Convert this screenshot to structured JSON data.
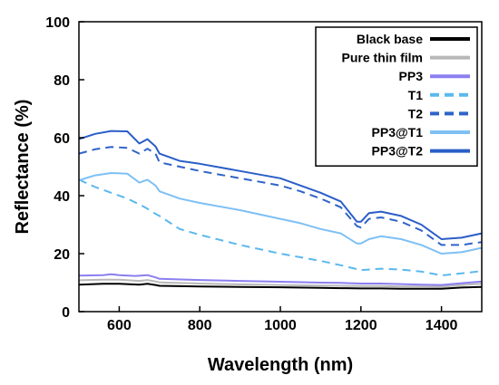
{
  "chart_data": {
    "type": "line",
    "title": "",
    "xlabel": "Wavelength (nm)",
    "ylabel": "Reflectance (%)",
    "xlim": [
      500,
      1500
    ],
    "ylim": [
      0,
      100
    ],
    "xticks": [
      600,
      800,
      1000,
      1200,
      1400
    ],
    "yticks": [
      0,
      20,
      40,
      60,
      80,
      100
    ],
    "grid": false,
    "legend_position": "top-right",
    "series": [
      {
        "name": "Black base",
        "color": "#000000",
        "dash": false,
        "points": [
          [
            500,
            9.3
          ],
          [
            560,
            9.6
          ],
          [
            600,
            9.6
          ],
          [
            650,
            9.3
          ],
          [
            670,
            9.6
          ],
          [
            690,
            9.2
          ],
          [
            700,
            8.9
          ],
          [
            800,
            8.7
          ],
          [
            900,
            8.5
          ],
          [
            1000,
            8.4
          ],
          [
            1100,
            8.2
          ],
          [
            1150,
            8.1
          ],
          [
            1200,
            8.0
          ],
          [
            1250,
            8.0
          ],
          [
            1300,
            7.9
          ],
          [
            1350,
            7.9
          ],
          [
            1400,
            7.9
          ],
          [
            1450,
            8.3
          ],
          [
            1500,
            8.5
          ]
        ]
      },
      {
        "name": "Pure thin film",
        "color": "#b8b8b8",
        "dash": false,
        "points": [
          [
            500,
            10.8
          ],
          [
            560,
            11.0
          ],
          [
            600,
            11.0
          ],
          [
            650,
            10.6
          ],
          [
            670,
            10.9
          ],
          [
            690,
            10.4
          ],
          [
            700,
            10.1
          ],
          [
            800,
            9.7
          ],
          [
            900,
            9.4
          ],
          [
            1000,
            9.2
          ],
          [
            1100,
            9.0
          ],
          [
            1150,
            8.9
          ],
          [
            1200,
            8.8
          ],
          [
            1250,
            8.8
          ],
          [
            1300,
            8.7
          ],
          [
            1350,
            8.7
          ],
          [
            1400,
            8.6
          ],
          [
            1450,
            9.2
          ],
          [
            1500,
            9.6
          ]
        ]
      },
      {
        "name": "PP3",
        "color": "#8b7ff0",
        "dash": false,
        "points": [
          [
            500,
            12.4
          ],
          [
            560,
            12.6
          ],
          [
            580,
            12.9
          ],
          [
            600,
            12.6
          ],
          [
            640,
            12.3
          ],
          [
            670,
            12.6
          ],
          [
            690,
            11.8
          ],
          [
            700,
            11.3
          ],
          [
            800,
            10.9
          ],
          [
            900,
            10.6
          ],
          [
            1000,
            10.3
          ],
          [
            1100,
            10.0
          ],
          [
            1150,
            9.9
          ],
          [
            1200,
            9.7
          ],
          [
            1250,
            9.7
          ],
          [
            1300,
            9.5
          ],
          [
            1350,
            9.3
          ],
          [
            1400,
            9.2
          ],
          [
            1450,
            9.8
          ],
          [
            1500,
            10.4
          ]
        ]
      },
      {
        "name": "T1",
        "color": "#5bb8ee",
        "dash": true,
        "points": [
          [
            500,
            45.5
          ],
          [
            540,
            43.0
          ],
          [
            580,
            41.0
          ],
          [
            620,
            39.0
          ],
          [
            650,
            37.0
          ],
          [
            670,
            35.5
          ],
          [
            680,
            34.5
          ],
          [
            700,
            33.0
          ],
          [
            750,
            28.5
          ],
          [
            800,
            26.5
          ],
          [
            900,
            23.0
          ],
          [
            1000,
            20.0
          ],
          [
            1100,
            17.5
          ],
          [
            1150,
            16.0
          ],
          [
            1200,
            14.3
          ],
          [
            1250,
            14.8
          ],
          [
            1300,
            14.5
          ],
          [
            1350,
            13.8
          ],
          [
            1400,
            12.5
          ],
          [
            1450,
            13.2
          ],
          [
            1500,
            14.0
          ]
        ]
      },
      {
        "name": "T2",
        "color": "#2f63c9",
        "dash": true,
        "points": [
          [
            500,
            54.5
          ],
          [
            540,
            56.0
          ],
          [
            580,
            56.8
          ],
          [
            620,
            56.5
          ],
          [
            650,
            54.5
          ],
          [
            670,
            56.2
          ],
          [
            690,
            54.5
          ],
          [
            700,
            51.5
          ],
          [
            750,
            50.0
          ],
          [
            800,
            48.5
          ],
          [
            900,
            46.0
          ],
          [
            1000,
            43.5
          ],
          [
            1050,
            41.5
          ],
          [
            1100,
            39.0
          ],
          [
            1150,
            36.0
          ],
          [
            1190,
            29.5
          ],
          [
            1200,
            29.0
          ],
          [
            1220,
            32.0
          ],
          [
            1250,
            32.5
          ],
          [
            1300,
            31.0
          ],
          [
            1350,
            28.0
          ],
          [
            1400,
            23.0
          ],
          [
            1450,
            23.0
          ],
          [
            1500,
            24.0
          ]
        ]
      },
      {
        "name": "PP3@T1",
        "color": "#7ec0f4",
        "dash": false,
        "points": [
          [
            500,
            45.3
          ],
          [
            540,
            47.0
          ],
          [
            580,
            47.8
          ],
          [
            620,
            47.6
          ],
          [
            650,
            44.5
          ],
          [
            670,
            45.5
          ],
          [
            690,
            43.5
          ],
          [
            700,
            41.5
          ],
          [
            750,
            39.0
          ],
          [
            800,
            37.5
          ],
          [
            900,
            35.0
          ],
          [
            1000,
            32.0
          ],
          [
            1050,
            30.5
          ],
          [
            1100,
            28.5
          ],
          [
            1150,
            27.0
          ],
          [
            1190,
            23.5
          ],
          [
            1200,
            23.5
          ],
          [
            1220,
            25.0
          ],
          [
            1250,
            26.0
          ],
          [
            1300,
            25.0
          ],
          [
            1350,
            23.0
          ],
          [
            1400,
            20.0
          ],
          [
            1450,
            20.5
          ],
          [
            1500,
            22.0
          ]
        ]
      },
      {
        "name": "PP3@T2",
        "color": "#2a5ec8",
        "dash": false,
        "points": [
          [
            500,
            59.5
          ],
          [
            540,
            61.3
          ],
          [
            580,
            62.3
          ],
          [
            620,
            62.2
          ],
          [
            650,
            58.0
          ],
          [
            670,
            59.5
          ],
          [
            690,
            57.0
          ],
          [
            700,
            54.5
          ],
          [
            750,
            52.0
          ],
          [
            800,
            51.0
          ],
          [
            900,
            48.5
          ],
          [
            1000,
            46.0
          ],
          [
            1050,
            43.5
          ],
          [
            1100,
            41.0
          ],
          [
            1150,
            38.0
          ],
          [
            1190,
            31.0
          ],
          [
            1200,
            31.0
          ],
          [
            1220,
            34.0
          ],
          [
            1250,
            34.5
          ],
          [
            1300,
            33.0
          ],
          [
            1350,
            30.0
          ],
          [
            1400,
            25.0
          ],
          [
            1450,
            25.5
          ],
          [
            1500,
            27.0
          ]
        ]
      }
    ]
  }
}
